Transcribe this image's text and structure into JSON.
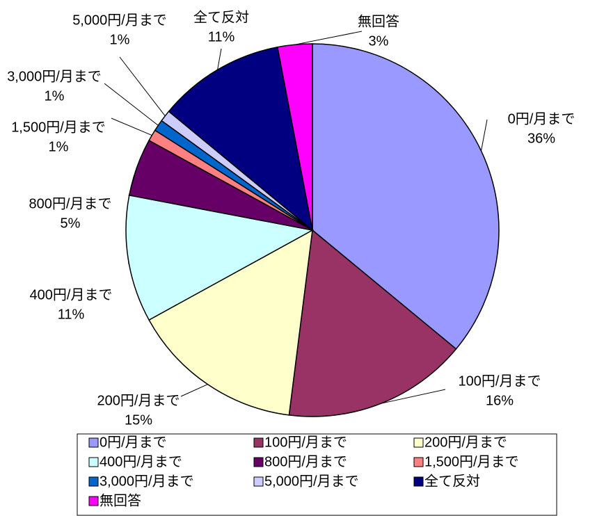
{
  "chart_data": {
    "type": "pie",
    "categories": [
      "0円/月まで",
      "100円/月まで",
      "200円/月まで",
      "400円/月まで",
      "800円/月まで",
      "1,500円/月まで",
      "3,000円/月まで",
      "5,000円/月まで",
      "全て反対",
      "無回答"
    ],
    "values": [
      36,
      16,
      15,
      11,
      5,
      1,
      1,
      1,
      11,
      3
    ],
    "value_labels": [
      "36%",
      "16%",
      "15%",
      "11%",
      "5%",
      "1%",
      "1%",
      "1%",
      "11%",
      "3%"
    ],
    "colors": [
      "#9999ff",
      "#993366",
      "#ffffcc",
      "#ccffff",
      "#660066",
      "#ff8080",
      "#0066cc",
      "#ccccff",
      "#000080",
      "#ff00ff"
    ],
    "legend": "bottom"
  }
}
